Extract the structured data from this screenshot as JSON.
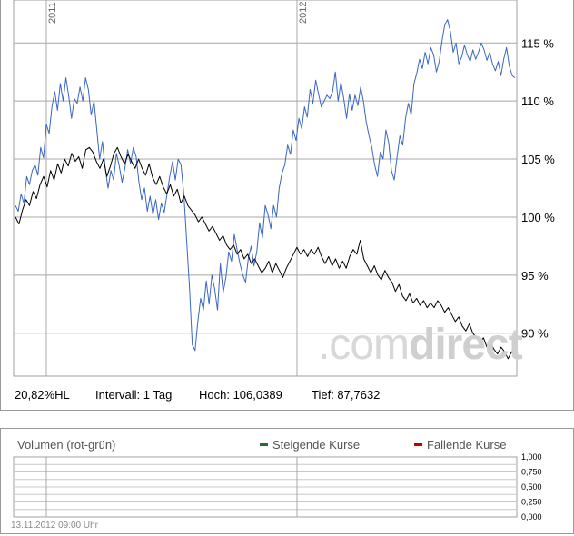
{
  "chart_data": [
    {
      "type": "line",
      "x_ticks": [
        "2011",
        "2012"
      ],
      "y_ticks": [
        "90 %",
        "95 %",
        "100 %",
        "105 %",
        "110 %",
        "115 %"
      ],
      "y_tick_values": [
        90,
        95,
        100,
        105,
        110,
        115
      ],
      "ylim": [
        86.3,
        118.7
      ],
      "grid": true,
      "series": [
        {
          "color": "#3a66c4",
          "values": [
            101,
            100.5,
            102,
            101.2,
            103.5,
            102.8,
            104,
            104.5,
            103.6,
            106,
            105.1,
            108,
            107.2,
            109.5,
            110.8,
            109.2,
            111.5,
            110,
            112,
            110.4,
            108.5,
            110.2,
            109.8,
            111.2,
            110,
            112,
            111,
            108.8,
            110,
            107.5,
            105,
            106.5,
            104.2,
            102.5,
            104,
            103.2,
            105.5,
            104.4,
            103,
            104.2,
            105.8,
            104.6,
            106,
            105.2,
            103,
            101.5,
            102.5,
            100.5,
            101.8,
            100.2,
            101.5,
            99.8,
            101.2,
            100.4,
            102,
            103.5,
            104.8,
            103.2,
            105,
            104.5,
            102,
            98,
            94,
            89,
            88.5,
            91,
            93,
            92,
            94.5,
            92.5,
            95,
            93.8,
            92,
            96,
            93.5,
            94.8,
            97,
            96.2,
            98.5,
            97.2,
            96,
            95,
            94.4,
            96.5,
            97.5,
            95.8,
            97,
            99.5,
            98.2,
            101,
            100.2,
            99,
            101,
            100,
            102.5,
            103.8,
            104.5,
            106.2,
            105.4,
            107.5,
            106.6,
            108.5,
            107.6,
            109.5,
            108.6,
            111,
            109.8,
            111.8,
            110.6,
            109.5,
            110,
            110.5,
            110.2,
            110.8,
            112.5,
            110,
            111.6,
            110.2,
            108.5,
            110.6,
            109.2,
            110.5,
            109.6,
            111.2,
            110,
            108.2,
            107,
            106,
            104.5,
            103.5,
            105.6,
            105,
            107.5,
            106.4,
            104,
            103.2,
            105.2,
            107,
            106.2,
            108.5,
            109.8,
            108.8,
            111.5,
            112.4,
            113.6,
            112.8,
            114.2,
            113.2,
            114.6,
            114,
            112.5,
            113.4,
            115.2,
            116.6,
            117,
            116,
            114.2,
            115,
            113.2,
            113.8,
            114.8,
            114,
            113.4,
            114.4,
            113.6,
            114.2,
            115,
            114.4,
            113.5,
            114.2,
            113.2,
            112.6,
            113.4,
            112.2,
            113.6,
            114.6,
            113,
            112.2,
            112
          ]
        },
        {
          "color": "#000000",
          "values": [
            100,
            99.4,
            100.6,
            101.5,
            101,
            102.2,
            101.6,
            102.8,
            103.5,
            102.6,
            104,
            103.2,
            104.6,
            103.8,
            105,
            104.4,
            105.5,
            104.8,
            105.2,
            104.2,
            105.8,
            106,
            105.6,
            104.8,
            104.2,
            105,
            103.5,
            104.4,
            105.5,
            106,
            105.2,
            104.6,
            105.4,
            104.8,
            104.2,
            105,
            104.2,
            103.6,
            104.6,
            103.4,
            102.8,
            103.5,
            102.6,
            102,
            102.8,
            101.8,
            102.4,
            101.2,
            101.8,
            101,
            100.6,
            100.2,
            99.6,
            100,
            99.4,
            98.8,
            99.2,
            98.6,
            98,
            98.4,
            97.6,
            97.2,
            97.6,
            96.8,
            97.2,
            96.4,
            96.8,
            96,
            96.4,
            95.8,
            95.2,
            95.6,
            96.2,
            95.2,
            96,
            95.4,
            94.8,
            95.6,
            96.2,
            96.8,
            97.4,
            96.8,
            97.2,
            96.6,
            97.2,
            96.8,
            97.4,
            96.6,
            96,
            96.6,
            95.8,
            96.4,
            95.6,
            96.2,
            95.6,
            96.6,
            97.2,
            96.8,
            98,
            96.4,
            95.8,
            95.2,
            95.8,
            95,
            94.6,
            95.4,
            94.8,
            94.4,
            93.6,
            94.2,
            93.2,
            92.8,
            93.4,
            92.6,
            93,
            92.4,
            92.8,
            92.2,
            92.6,
            92.2,
            92.8,
            92.4,
            91.8,
            92.2,
            91.6,
            91,
            91.4,
            90.6,
            90.2,
            90.8,
            90,
            89.6,
            89.2,
            89.6,
            88.8,
            89.2,
            88.6,
            88.2,
            88.8,
            88.4,
            87.8,
            88.4,
            88,
            87.8
          ]
        }
      ]
    },
    {
      "type": "bar",
      "title": "Volumen (rot-grün)",
      "y_ticks": [
        "1,000",
        "0,750",
        "0,500",
        "0,250",
        "0,000"
      ],
      "y_tick_values": [
        1,
        0.75,
        0.5,
        0.25,
        0
      ],
      "ylim": [
        0,
        1
      ],
      "grid": true,
      "series": [
        {
          "name": "Steigende Kurse",
          "color": "#1f6f2e",
          "values": []
        },
        {
          "name": "Fallende Kurse",
          "color": "#c00000",
          "values": []
        }
      ]
    }
  ],
  "stats": {
    "performance": "20,82%HL",
    "interval": "Intervall: 1 Tag",
    "high": "Hoch: 106,0389",
    "low": "Tief: 87,7632"
  },
  "watermark": {
    "part1": ".com",
    "part2": "direct"
  },
  "timestamp": "13.11.2012 09:00 Uhr"
}
